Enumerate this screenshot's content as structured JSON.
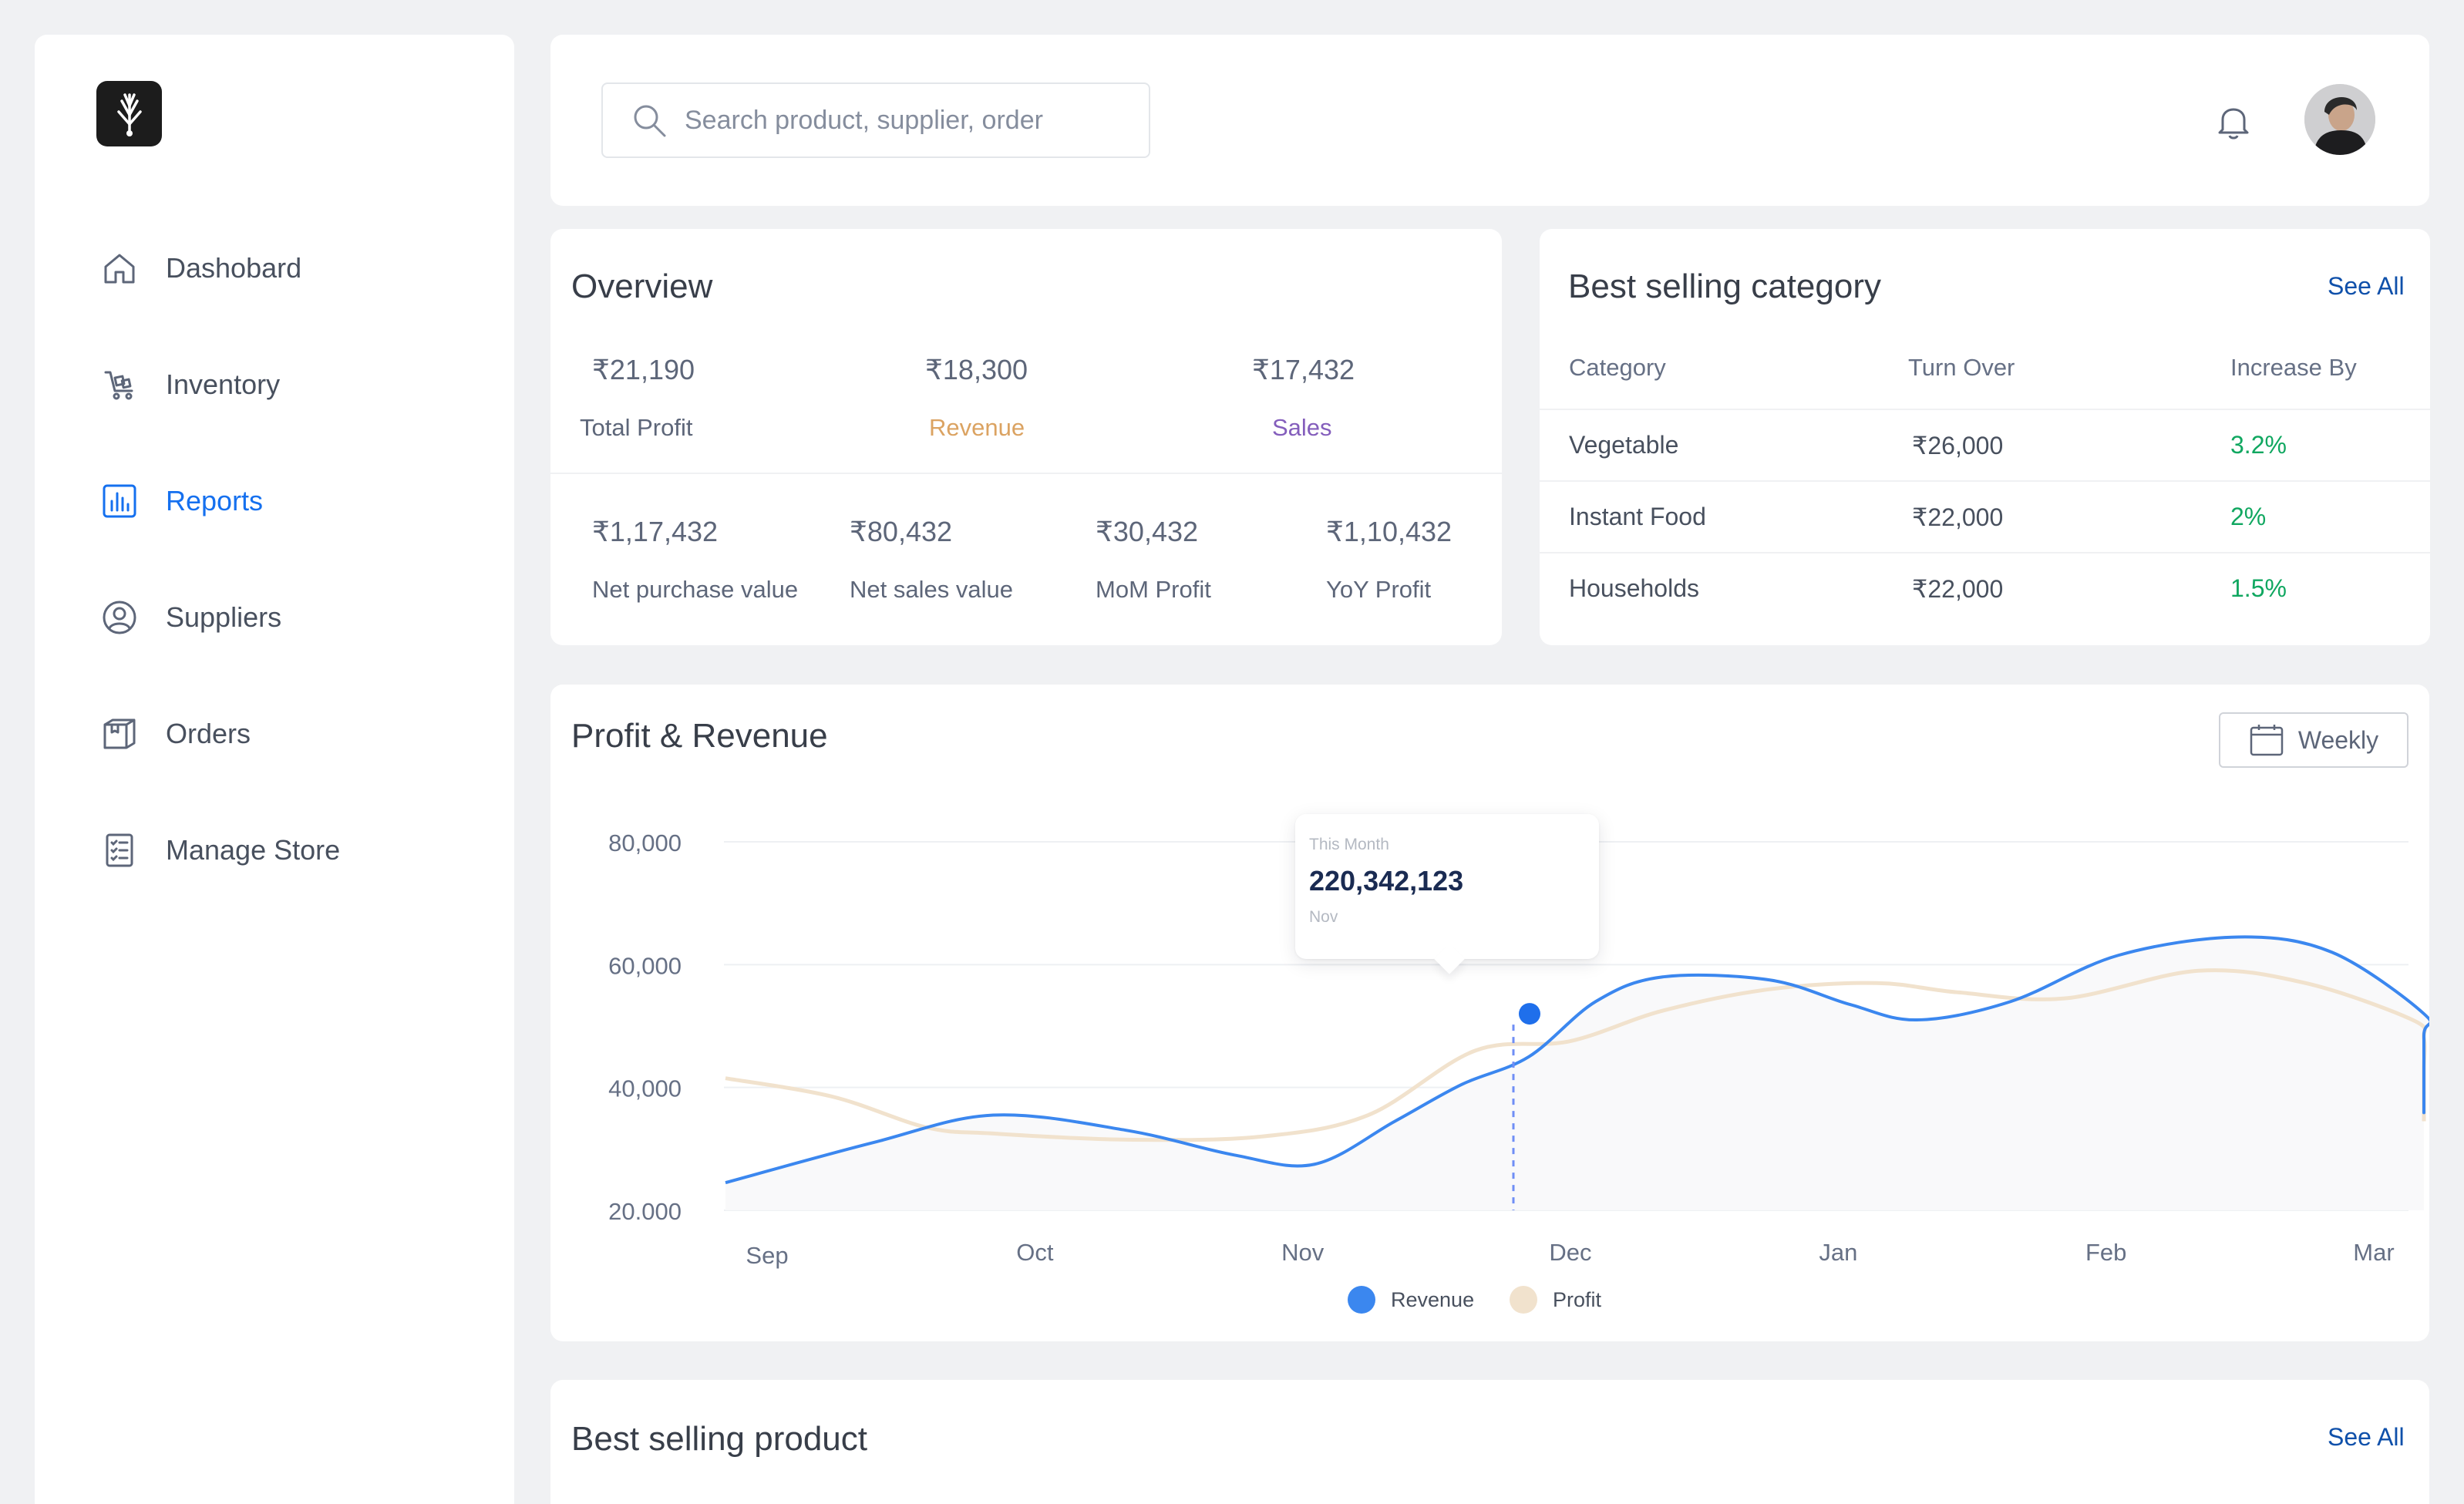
{
  "sidebar": {
    "items": [
      {
        "label": "Dashobard",
        "icon": "home-icon",
        "active": false
      },
      {
        "label": "Inventory",
        "icon": "inventory-cart-icon",
        "active": false
      },
      {
        "label": "Reports",
        "icon": "reports-chart-icon",
        "active": true
      },
      {
        "label": "Suppliers",
        "icon": "supplier-user-icon",
        "active": false
      },
      {
        "label": "Orders",
        "icon": "orders-box-icon",
        "active": false
      },
      {
        "label": "Manage Store",
        "icon": "manage-store-checklist-icon",
        "active": false
      }
    ]
  },
  "search": {
    "placeholder": "Search product, supplier, order"
  },
  "overview": {
    "title": "Overview",
    "top_stats": [
      {
        "value": "₹21,190",
        "label": "Total Profit",
        "color": "#5d6679"
      },
      {
        "value": "₹18,300",
        "label": "Revenue",
        "color": "#dba362"
      },
      {
        "value": "₹17,432",
        "label": "Sales",
        "color": "#845ebc"
      }
    ],
    "bottom_stats": [
      {
        "value": "₹1,17,432",
        "label": "Net purchase value"
      },
      {
        "value": "₹80,432",
        "label": "Net sales value"
      },
      {
        "value": "₹30,432",
        "label": "MoM Profit"
      },
      {
        "value": "₹1,10,432",
        "label": "YoY Profit"
      }
    ]
  },
  "category": {
    "title": "Best selling category",
    "see_all": "See All",
    "headers": [
      "Category",
      "Turn Over",
      "Increase By"
    ],
    "rows": [
      {
        "category": "Vegetable",
        "turnover": "₹26,000",
        "increase": "3.2%"
      },
      {
        "category": "Instant Food",
        "turnover": "₹22,000",
        "increase": "2%"
      },
      {
        "category": "Households",
        "turnover": "₹22,000",
        "increase": "1.5%"
      }
    ],
    "increase_color": "#10a760"
  },
  "chart": {
    "title": "Profit  & Revenue",
    "period_button": "Weekly",
    "tooltip": {
      "caption": "This Month",
      "value": "220,342,123",
      "month": "Nov"
    }
  },
  "chart_data": {
    "type": "area",
    "x": [
      "Sep",
      "Oct",
      "Nov",
      "Dec",
      "Jan",
      "Feb",
      "Mar"
    ],
    "y_ticks": [
      "80,000",
      "60,000",
      "40,000",
      "20.000"
    ],
    "ylim": [
      20000,
      80000
    ],
    "grid": true,
    "legend": "bottom-center",
    "series": [
      {
        "name": "Revenue",
        "color": "#3b87ef",
        "points": [
          [
            0.0,
            24500
          ],
          [
            0.55,
            31000
          ],
          [
            1.0,
            35500
          ],
          [
            1.5,
            33000
          ],
          [
            1.9,
            29000
          ],
          [
            2.2,
            27500
          ],
          [
            2.5,
            34500
          ],
          [
            2.75,
            40500
          ],
          [
            3.0,
            45000
          ],
          [
            3.25,
            54000
          ],
          [
            3.5,
            58000
          ],
          [
            3.9,
            57500
          ],
          [
            4.2,
            53500
          ],
          [
            4.45,
            51000
          ],
          [
            4.8,
            54000
          ],
          [
            5.2,
            61500
          ],
          [
            5.65,
            64500
          ],
          [
            6.0,
            62000
          ],
          [
            6.35,
            52000
          ],
          [
            6.65,
            48500
          ],
          [
            7.0,
            36500
          ],
          [
            7.2,
            38000
          ],
          [
            7.5,
            41000
          ],
          [
            7.7,
            42000
          ]
        ]
      },
      {
        "name": "Profit",
        "color": "#f1e2cd",
        "points": [
          [
            0.0,
            41500
          ],
          [
            0.4,
            38500
          ],
          [
            0.75,
            33500
          ],
          [
            1.0,
            32500
          ],
          [
            1.5,
            31500
          ],
          [
            2.0,
            32000
          ],
          [
            2.4,
            35500
          ],
          [
            2.8,
            46000
          ],
          [
            3.15,
            47500
          ],
          [
            3.5,
            52500
          ],
          [
            3.9,
            56000
          ],
          [
            4.3,
            57000
          ],
          [
            4.6,
            55500
          ],
          [
            5.0,
            54500
          ],
          [
            5.5,
            59000
          ],
          [
            5.9,
            57000
          ],
          [
            6.3,
            51000
          ],
          [
            6.75,
            48000
          ],
          [
            7.1,
            43000
          ],
          [
            7.3,
            36500
          ],
          [
            7.7,
            34500
          ]
        ]
      }
    ],
    "highlight": {
      "x": 3.0,
      "y": 52000
    }
  },
  "products": {
    "title": "Best selling product",
    "see_all": "See All"
  }
}
